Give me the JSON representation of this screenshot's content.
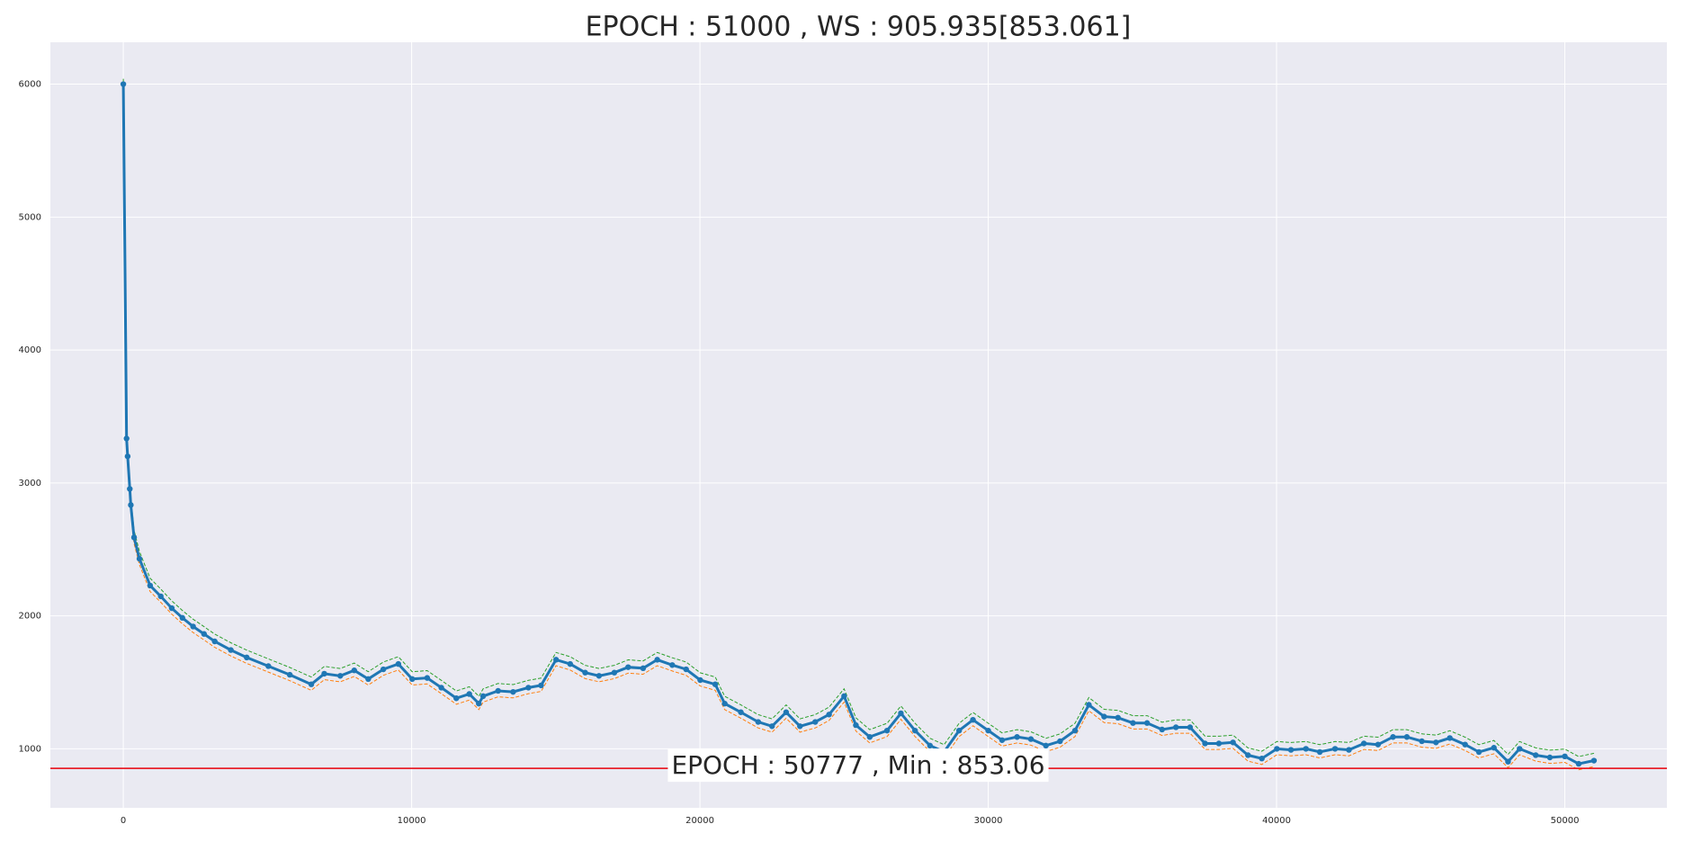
{
  "chart_data": {
    "type": "line",
    "title": "EPOCH : 51000 , WS : 905.935[853.061]",
    "annotation": "EPOCH : 50777 , Min : 853.06",
    "hline": {
      "y": 853.06,
      "color": "#e8000b"
    },
    "x": [
      0,
      112,
      150,
      224,
      260,
      373,
      560,
      930,
      1300,
      1680,
      2050,
      2420,
      2800,
      3170,
      3730,
      4280,
      5030,
      5775,
      6520,
      6970,
      7525,
      8010,
      8495,
      9020,
      9540,
      10020,
      10540,
      11030,
      11550,
      12000,
      12330,
      12480,
      13000,
      13520,
      14050,
      14490,
      15010,
      15500,
      16020,
      16500,
      17030,
      17510,
      18030,
      18520,
      19040,
      19520,
      20010,
      20530,
      20860,
      21420,
      22020,
      22500,
      22990,
      23470,
      24000,
      24480,
      25000,
      25410,
      25890,
      26490,
      26970,
      27460,
      27980,
      28470,
      28990,
      29470,
      30000,
      30480,
      31000,
      31480,
      32000,
      32490,
      33010,
      33490,
      34020,
      34500,
      35020,
      35510,
      36030,
      36510,
      37000,
      37520,
      38000,
      38490,
      39010,
      39490,
      40010,
      40500,
      41020,
      41500,
      42030,
      42510,
      43030,
      43520,
      44040,
      44520,
      45040,
      45530,
      46010,
      46540,
      47020,
      47540,
      48030,
      48430,
      48990,
      49480,
      50000,
      50480,
      51010
    ],
    "series": [
      {
        "color": "#2ca02c",
        "dashed": true,
        "markers": false,
        "values": [
          6040,
          3389,
          3255,
          3010,
          2889,
          2645,
          2485,
          2283,
          2202,
          2113,
          2040,
          1975,
          1919,
          1863,
          1798,
          1742,
          1677,
          1612,
          1540,
          1620,
          1604,
          1645,
          1580,
          1653,
          1693,
          1580,
          1588,
          1515,
          1435,
          1467,
          1395,
          1451,
          1491,
          1483,
          1515,
          1532,
          1725,
          1693,
          1628,
          1604,
          1628,
          1669,
          1661,
          1725,
          1685,
          1653,
          1572,
          1540,
          1395,
          1330,
          1257,
          1225,
          1330,
          1225,
          1257,
          1313,
          1451,
          1233,
          1144,
          1192,
          1322,
          1192,
          1079,
          1031,
          1192,
          1273,
          1192,
          1120,
          1144,
          1128,
          1079,
          1112,
          1192,
          1386,
          1297,
          1289,
          1249,
          1249,
          1200,
          1217,
          1217,
          1095,
          1095,
          1103,
          1007,
          982,
          1055,
          1047,
          1055,
          1031,
          1055,
          1047,
          1095,
          1087,
          1144,
          1144,
          1112,
          1103,
          1136,
          1087,
          1031,
          1063,
          958,
          1055,
          1007,
          990,
          998,
          942,
          966
        ]
      },
      {
        "color": "#ff7f0e",
        "dashed": true,
        "markers": false,
        "values": [
          5990,
          3289,
          3155,
          2910,
          2789,
          2545,
          2385,
          2183,
          2102,
          2013,
          1940,
          1875,
          1819,
          1763,
          1698,
          1642,
          1577,
          1512,
          1440,
          1520,
          1504,
          1545,
          1480,
          1553,
          1593,
          1480,
          1488,
          1415,
          1335,
          1367,
          1295,
          1351,
          1391,
          1383,
          1415,
          1432,
          1625,
          1593,
          1528,
          1504,
          1528,
          1569,
          1561,
          1625,
          1585,
          1553,
          1472,
          1440,
          1295,
          1230,
          1157,
          1125,
          1230,
          1125,
          1157,
          1213,
          1351,
          1133,
          1044,
          1092,
          1222,
          1092,
          979,
          931,
          1092,
          1173,
          1092,
          1020,
          1044,
          1028,
          979,
          1012,
          1092,
          1286,
          1197,
          1189,
          1149,
          1149,
          1100,
          1117,
          1117,
          995,
          995,
          1003,
          907,
          882,
          955,
          947,
          955,
          931,
          955,
          947,
          995,
          987,
          1044,
          1044,
          1012,
          1003,
          1036,
          987,
          931,
          963,
          858,
          955,
          907,
          890,
          898,
          842,
          866
        ]
      },
      {
        "color": "#1f77b4",
        "dashed": false,
        "markers": true,
        "values": [
          6000,
          3334,
          3200,
          2955,
          2834,
          2590,
          2430,
          2228,
          2147,
          2058,
          1985,
          1920,
          1864,
          1808,
          1743,
          1687,
          1622,
          1557,
          1485,
          1565,
          1549,
          1590,
          1525,
          1598,
          1638,
          1525,
          1533,
          1460,
          1380,
          1412,
          1340,
          1396,
          1436,
          1428,
          1460,
          1477,
          1670,
          1638,
          1573,
          1549,
          1573,
          1614,
          1606,
          1670,
          1630,
          1598,
          1517,
          1485,
          1340,
          1275,
          1202,
          1170,
          1275,
          1170,
          1202,
          1258,
          1396,
          1178,
          1089,
          1137,
          1267,
          1137,
          1024,
          976,
          1137,
          1218,
          1137,
          1065,
          1089,
          1073,
          1024,
          1057,
          1137,
          1331,
          1242,
          1234,
          1194,
          1194,
          1145,
          1162,
          1162,
          1040,
          1040,
          1048,
          952,
          927,
          1000,
          992,
          1000,
          976,
          1000,
          992,
          1040,
          1032,
          1089,
          1089,
          1057,
          1048,
          1081,
          1032,
          976,
          1008,
          903,
          1000,
          952,
          935,
          943,
          887,
          911
        ]
      }
    ],
    "xlim": [
      -2530,
      53540
    ],
    "ylim": [
      556,
      6315
    ],
    "xticks": [
      0,
      10000,
      20000,
      30000,
      40000,
      50000
    ],
    "yticks": [
      1000,
      2000,
      3000,
      4000,
      5000,
      6000
    ],
    "grid": true
  }
}
